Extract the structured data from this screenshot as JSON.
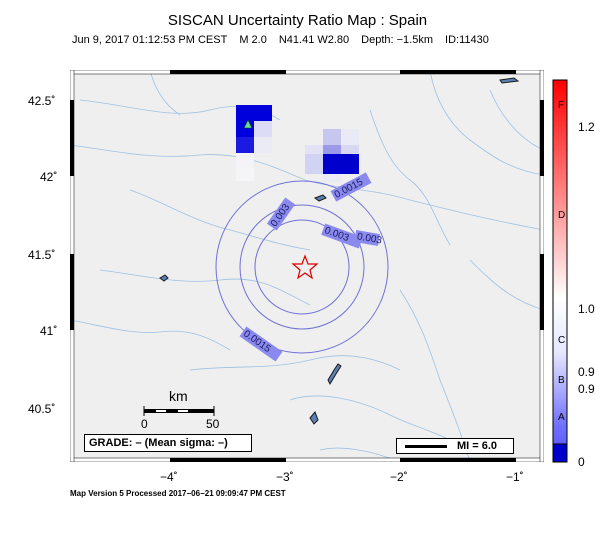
{
  "header": {
    "title": "SISCAN Uncertainty Ratio Map : Spain",
    "datetime": "Jun  9, 2017 01:12:53 PM CEST",
    "magnitude": "M 2.0",
    "location": "N41.41 W2.80",
    "depth": "Depth: −1.5km",
    "event_id": "ID:11430"
  },
  "map": {
    "lat_ticks": [
      "42.5˚",
      "42˚",
      "41.5˚",
      "41˚",
      "40.5˚"
    ],
    "lon_ticks": [
      "−4˚",
      "−3˚",
      "−2˚",
      "−1˚"
    ],
    "contour_labels": [
      "0.0015",
      "0.003",
      "0.003",
      "0.003",
      "0.0015"
    ],
    "epicenter_marker": "star-icon",
    "station_marker": "triangle-icon"
  },
  "scale_bar": {
    "unit": "km",
    "tick_start": "0",
    "tick_end": "50"
  },
  "grade_box": {
    "text": "GRADE: – (Mean sigma: –)"
  },
  "mi_legend": {
    "text": "MI = 6.0"
  },
  "colorbar": {
    "letters": [
      "F",
      "D",
      "C",
      "B",
      "A"
    ],
    "values": [
      "1.2",
      "1.0",
      "0.9",
      "0.9",
      "0"
    ],
    "colors": {
      "high": "#ff0000",
      "mid": "#ffffff",
      "low": "#0000ff"
    }
  },
  "footer": {
    "text": "Map Version 5 Processed 2017−06−21 09:09:47 PM CEST"
  }
}
